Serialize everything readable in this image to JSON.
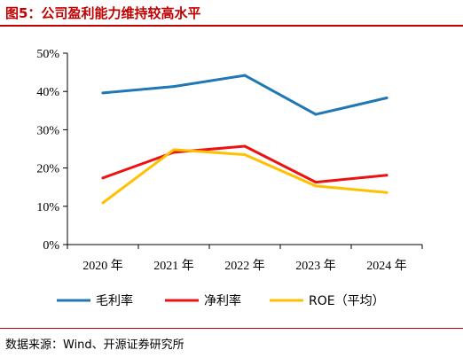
{
  "figure_title": "图5：公司盈利能力维持较高水平",
  "source": "数据来源：Wind、开源证券研究所",
  "colors": {
    "accent": "#c00000",
    "gross_margin": "#1f77b4",
    "net_margin": "#ee1111",
    "roe": "#ffc000"
  },
  "chart_data": {
    "type": "line",
    "categories": [
      "2020 年",
      "2021 年",
      "2022 年",
      "2023 年",
      "2024 年"
    ],
    "y_ticks": [
      "0%",
      "10%",
      "20%",
      "30%",
      "40%",
      "50%"
    ],
    "ylim": [
      0,
      50
    ],
    "grid": false,
    "legend_position": "bottom",
    "series": [
      {
        "name": "毛利率",
        "color": "#1f77b4",
        "values": [
          39.6,
          41.3,
          44.2,
          34.0,
          38.3
        ]
      },
      {
        "name": "净利率",
        "color": "#ee1111",
        "values": [
          17.4,
          24.1,
          25.7,
          16.3,
          18.1
        ]
      },
      {
        "name": "ROE（平均）",
        "color": "#ffc000",
        "values": [
          10.9,
          24.8,
          23.5,
          15.3,
          13.6
        ]
      }
    ]
  }
}
